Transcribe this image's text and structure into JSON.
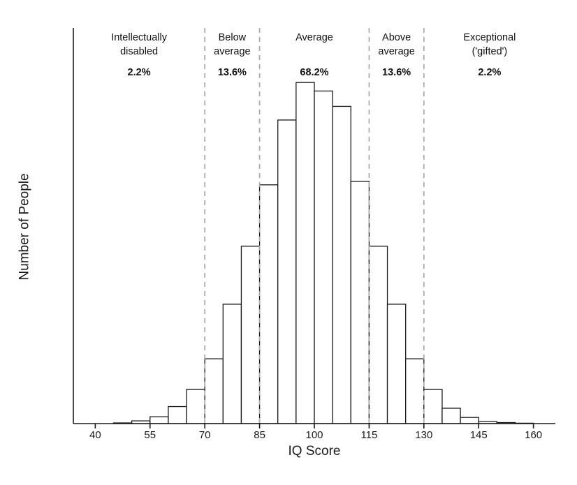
{
  "chart_data": {
    "type": "bar",
    "subtype": "histogram",
    "title": "",
    "xlabel": "IQ Score",
    "ylabel": "Number of People",
    "xlim": [
      34,
      166
    ],
    "ylim": [
      0,
      1.16
    ],
    "grid": false,
    "legend": "none",
    "bar_fill": "#ffffff",
    "bar_stroke": "#1a1a1a",
    "axis_color": "#1a1a1a",
    "divider_color": "#a8a8a8",
    "bin_width": 5,
    "bin_start_x": [
      45,
      50,
      55,
      60,
      65,
      70,
      75,
      80,
      85,
      90,
      95,
      100,
      105,
      110,
      115,
      120,
      125,
      130,
      135,
      140,
      145,
      150,
      155
    ],
    "values": [
      0.002,
      0.008,
      0.02,
      0.05,
      0.1,
      0.19,
      0.35,
      0.52,
      0.7,
      0.89,
      1.0,
      0.975,
      0.93,
      0.71,
      0.52,
      0.35,
      0.19,
      0.1,
      0.045,
      0.018,
      0.006,
      0.003,
      0.001
    ],
    "values_note": "relative bar heights, peak bin (95-100) = 1.0; y axis shows no numeric ticks",
    "x_ticks": [
      40,
      55,
      70,
      85,
      100,
      115,
      130,
      145,
      160
    ],
    "divider_lines_x": [
      70,
      85,
      115,
      130
    ],
    "regions": [
      {
        "id": "intellectually-disabled",
        "label_lines": [
          "Intellectually",
          "disabled"
        ],
        "pct": "2.2%",
        "from": 34,
        "to": 70
      },
      {
        "id": "below-average",
        "label_lines": [
          "Below",
          "average"
        ],
        "pct": "13.6%",
        "from": 70,
        "to": 85
      },
      {
        "id": "average",
        "label_lines": [
          "Average"
        ],
        "pct": "68.2%",
        "from": 85,
        "to": 115
      },
      {
        "id": "above-average",
        "label_lines": [
          "Above",
          "average"
        ],
        "pct": "13.6%",
        "from": 115,
        "to": 130
      },
      {
        "id": "exceptional-gifted",
        "label_lines": [
          "Exceptional",
          "('gifted')"
        ],
        "pct": "2.2%",
        "from": 130,
        "to": 166
      }
    ]
  }
}
